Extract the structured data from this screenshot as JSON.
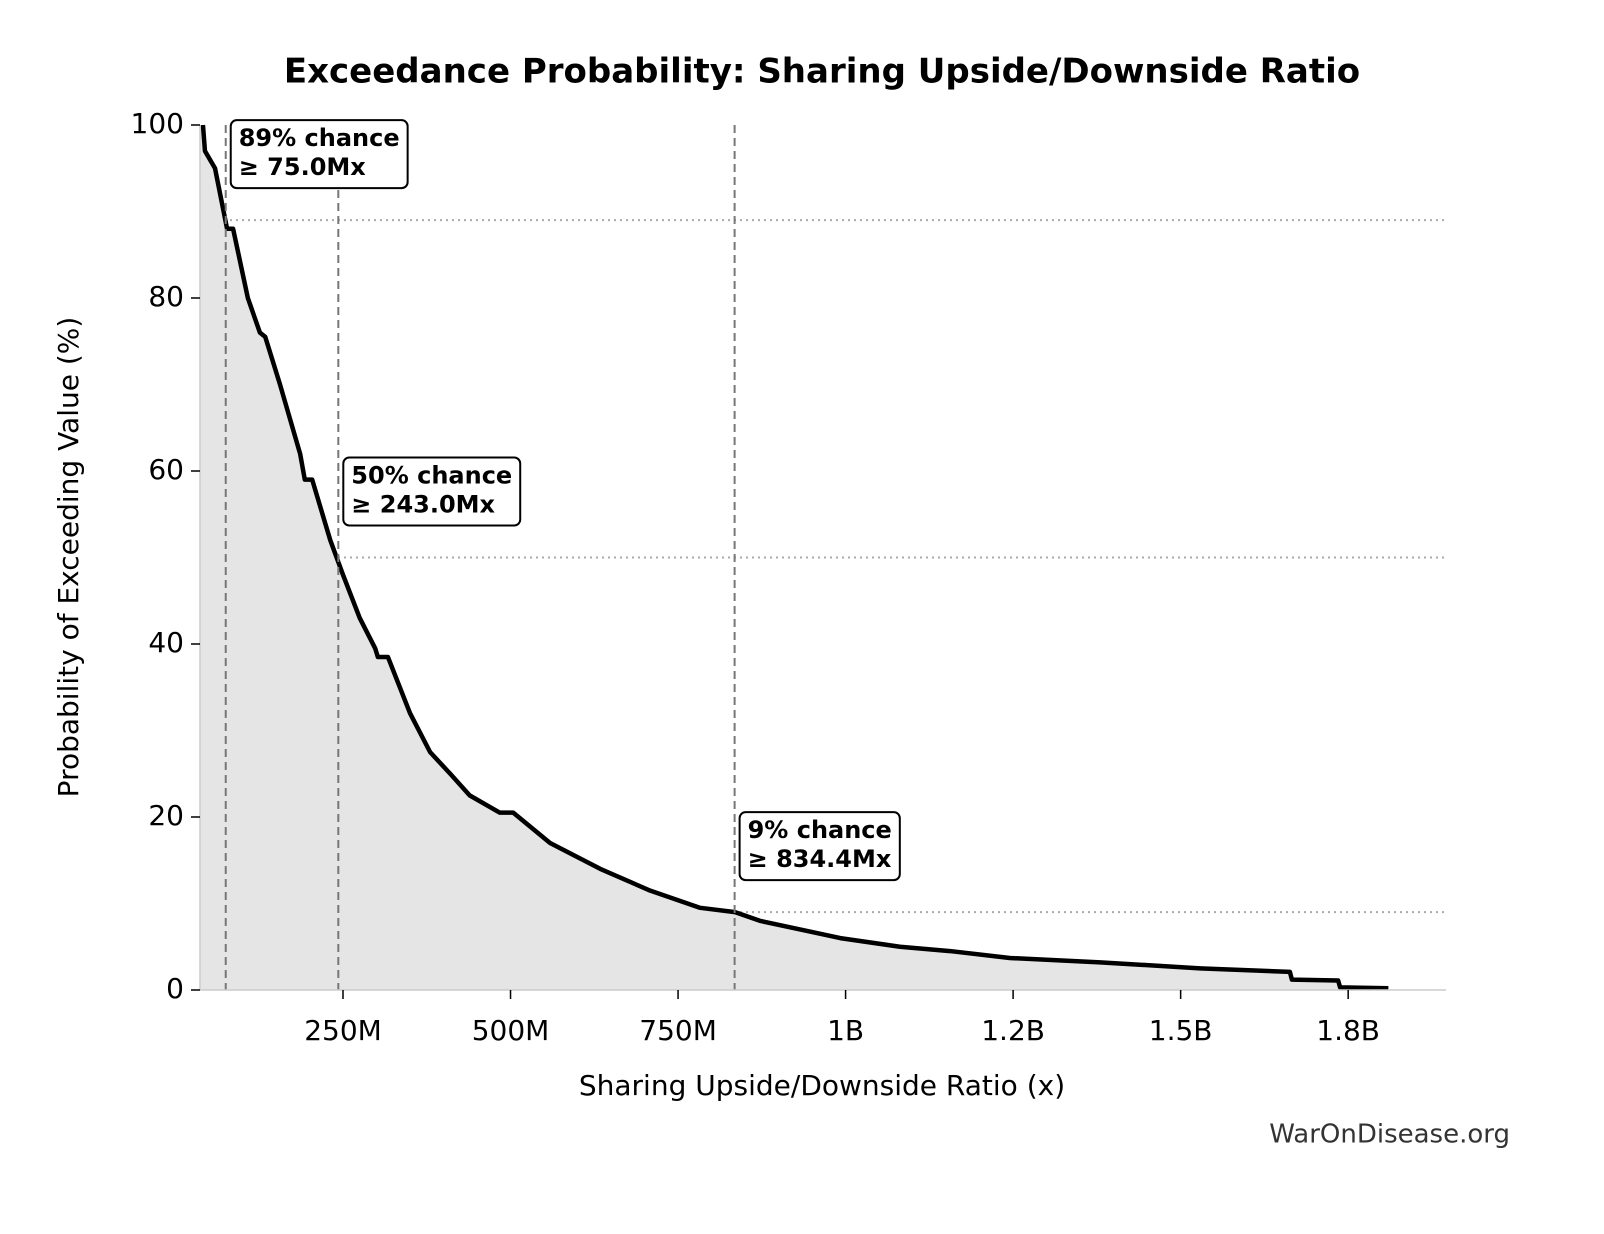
{
  "chart_data": {
    "type": "line",
    "title": "Exceedance Probability: Sharing Upside/Downside Ratio",
    "x_label": "Sharing Upside/Downside Ratio (x)",
    "y_label": "Probability of Exceeding Value (%)",
    "footer": "WarOnDisease.org",
    "xlim": [
      36600000,
      1896000000
    ],
    "ylim": [
      0,
      100
    ],
    "xticks": [
      {
        "value": 250000000,
        "label": "250M"
      },
      {
        "value": 500000000,
        "label": "500M"
      },
      {
        "value": 750000000,
        "label": "750M"
      },
      {
        "value": 1000000000,
        "label": "1B"
      },
      {
        "value": 1250000000,
        "label": "1.2B"
      },
      {
        "value": 1500000000,
        "label": "1.5B"
      },
      {
        "value": 1750000000,
        "label": "1.8B"
      }
    ],
    "yticks": [
      0,
      20,
      40,
      60,
      80,
      100
    ],
    "series": [
      {
        "color": "#000000",
        "fill": "#e5e5e5",
        "x": [
          41000000,
          44000000,
          59000000,
          77000000,
          86000000,
          108000000,
          126000000,
          134000000,
          156000000,
          186000000,
          193000000,
          204000000,
          231000000,
          250000000,
          275000000,
          298000000,
          302000000,
          317000000,
          350000000,
          380000000,
          410000000,
          439000000,
          484000000,
          504000000,
          559000000,
          634000000,
          708000000,
          783000000,
          835000000,
          872000000,
          932000000,
          992000000,
          1081000000,
          1156000000,
          1245000000,
          1380000000,
          1529000000,
          1663000000,
          1666000000,
          1735000000,
          1738000000,
          1810000000
        ],
        "values": [
          100,
          97,
          95,
          88,
          88,
          80,
          76,
          75.5,
          70,
          62,
          59,
          59,
          52,
          48,
          43,
          39.5,
          38.5,
          38.5,
          32,
          27.5,
          25,
          22.5,
          20.5,
          20.5,
          17,
          14,
          11.5,
          9.5,
          9,
          8,
          7,
          6,
          5,
          4.5,
          3.7,
          3.2,
          2.5,
          2.1,
          1.2,
          1.1,
          0.3,
          0.2
        ]
      }
    ],
    "annotations": [
      {
        "lines": [
          "89% chance",
          "≥ 75.0Mx"
        ],
        "x": 75000000,
        "y": 89
      },
      {
        "lines": [
          "50% chance",
          "≥ 243.0Mx"
        ],
        "x": 243000000,
        "y": 50
      },
      {
        "lines": [
          "9% chance",
          "≥ 834.4Mx"
        ],
        "x": 834400000,
        "y": 9
      }
    ]
  }
}
